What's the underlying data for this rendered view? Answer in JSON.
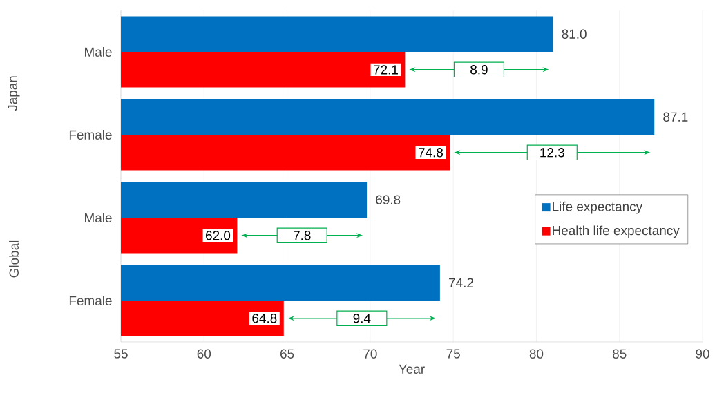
{
  "chart_data": {
    "type": "bar",
    "orientation": "horizontal",
    "xlabel": "Year",
    "categories": [
      "Male",
      "Female",
      "Male",
      "Female"
    ],
    "series": [
      {
        "name": "Life expectancy",
        "color": "#0070c0",
        "values": [
          81.0,
          87.1,
          69.8,
          74.2
        ],
        "value_labels": [
          "81.0",
          "87.1",
          "69.8",
          "74.2"
        ]
      },
      {
        "name": "Health life expectancy",
        "color": "#ff0000",
        "values": [
          72.1,
          74.8,
          62.0,
          64.8
        ],
        "value_labels": [
          "72.1",
          "74.8",
          "62.0",
          "64.8"
        ]
      }
    ],
    "annotations": [
      "Japan",
      "Global",
      "8.9",
      "12.3",
      "7.8",
      "9.4"
    ],
    "xlim": [
      55,
      90
    ],
    "xticks": [
      55,
      60,
      65,
      70,
      75,
      80,
      85,
      90
    ],
    "grid": "x",
    "legend": "right"
  }
}
